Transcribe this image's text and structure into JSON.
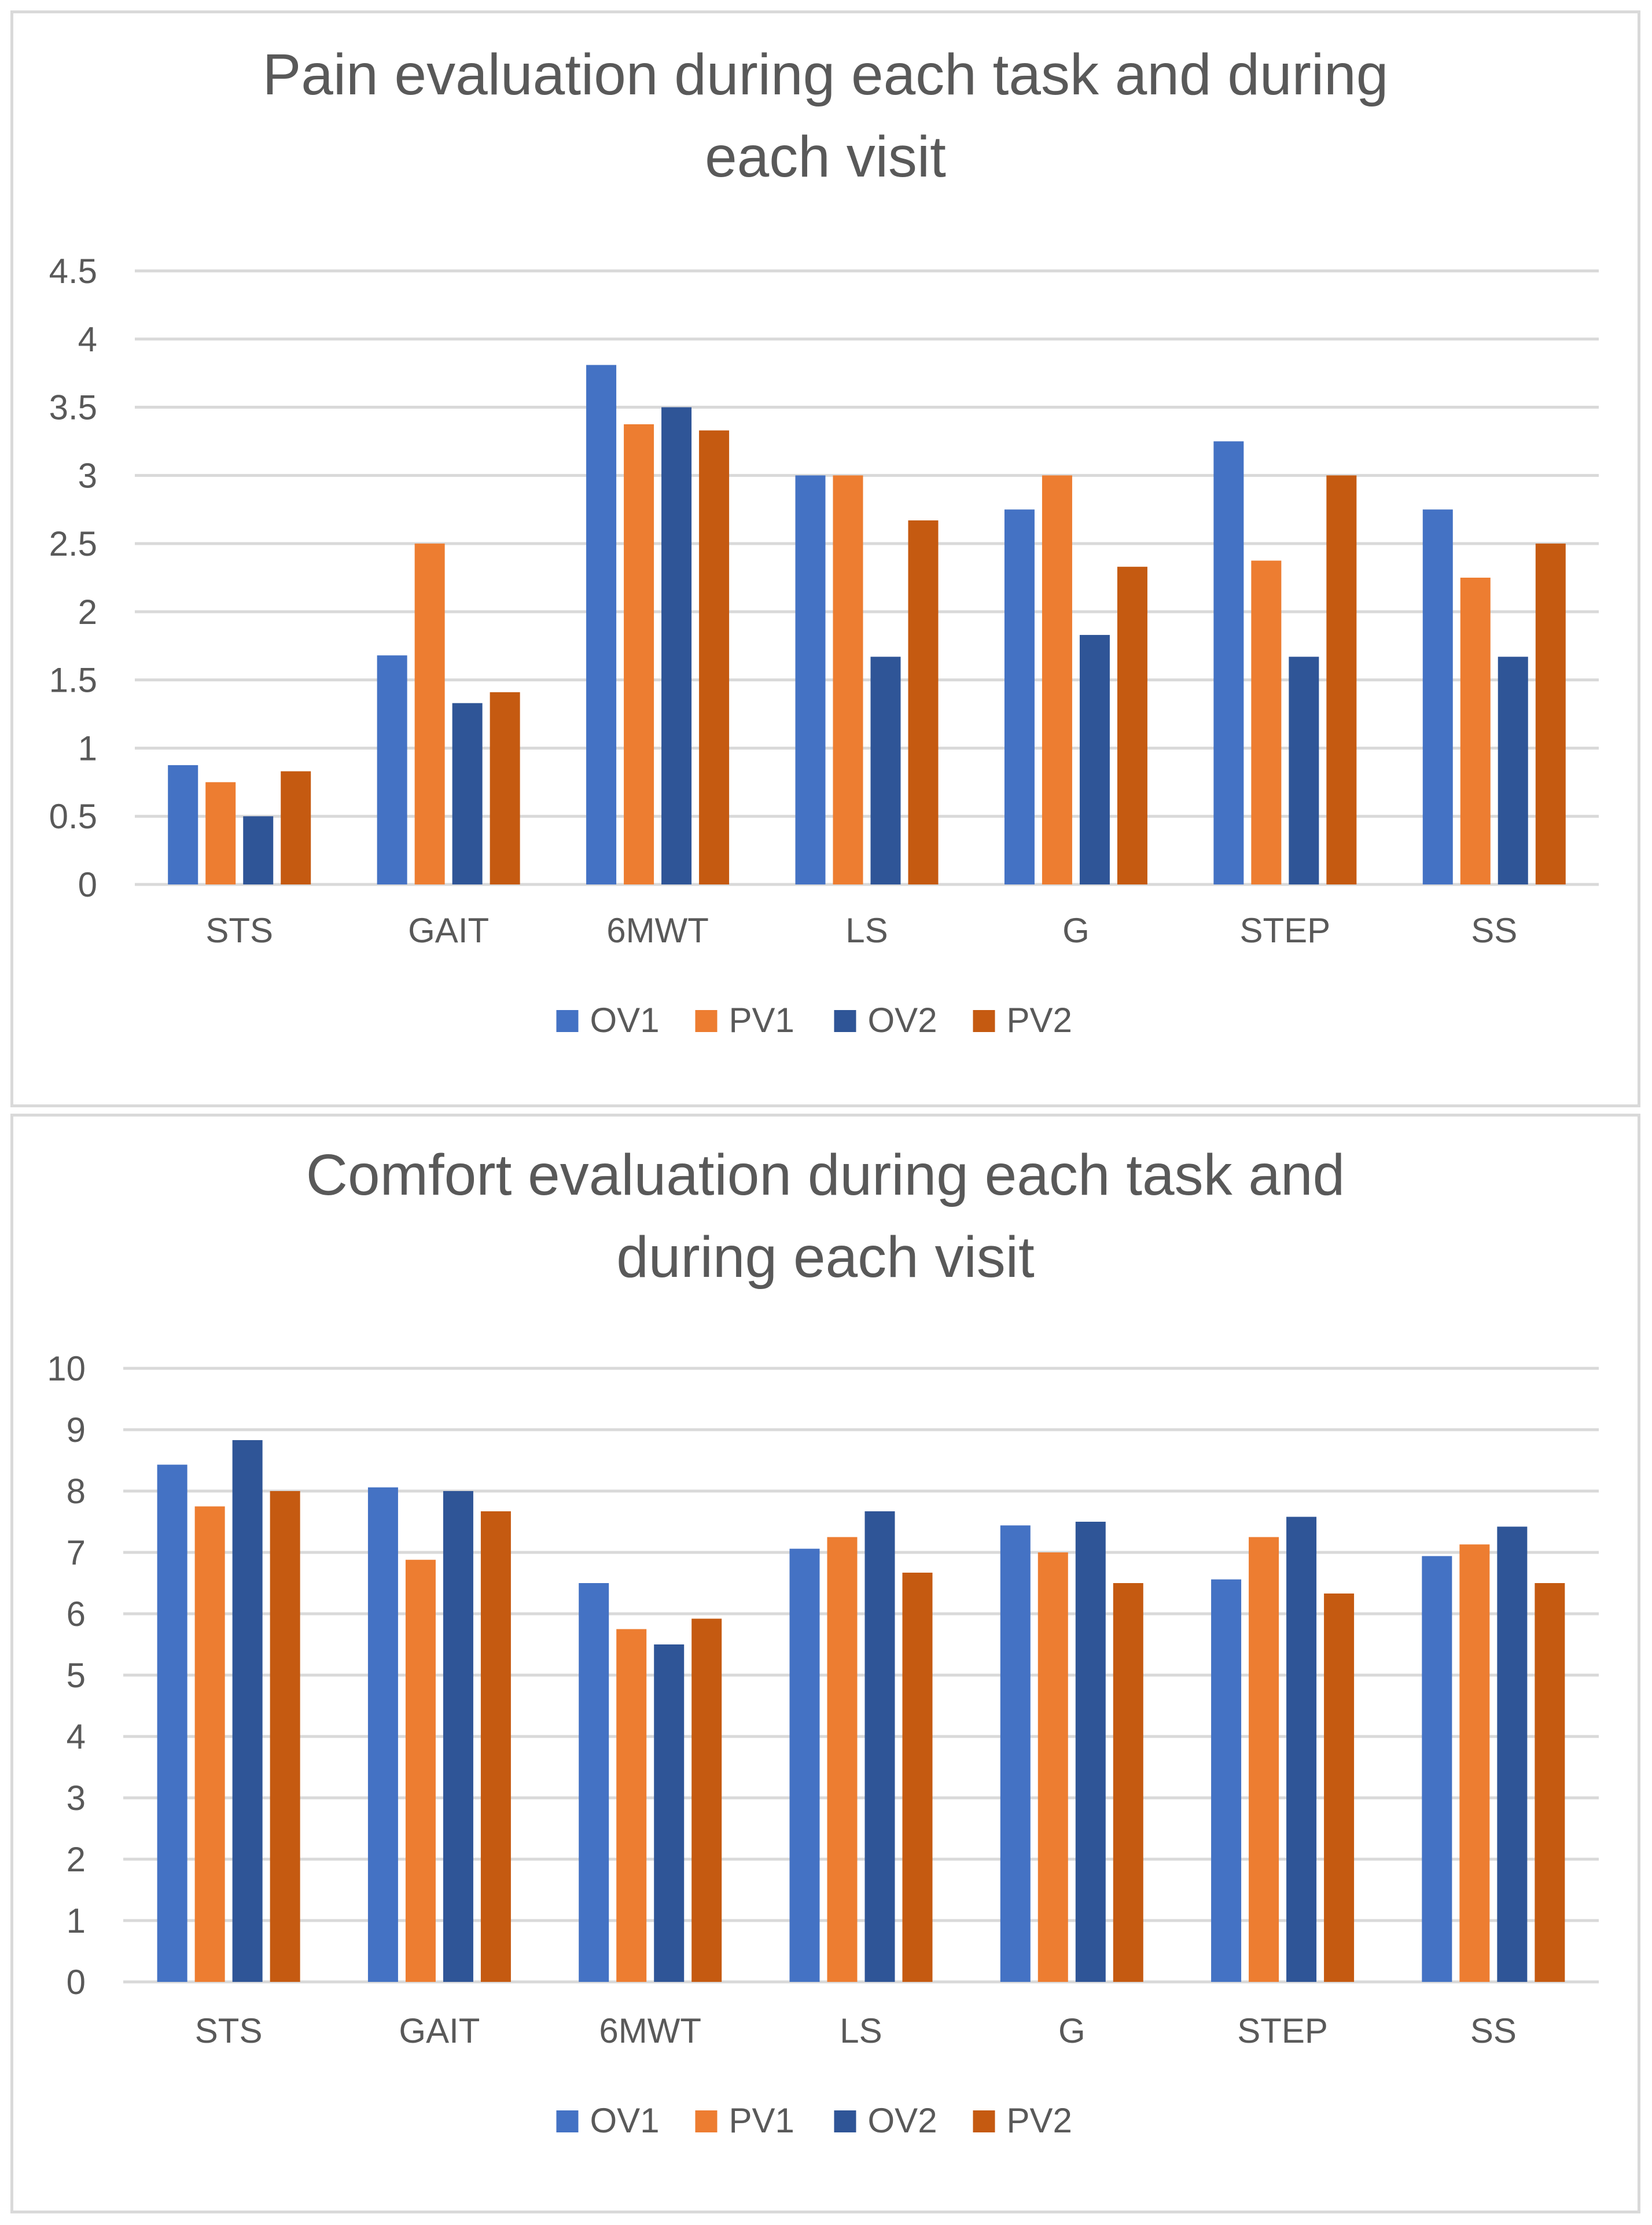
{
  "colors": {
    "OV1": "#4472c4",
    "PV1": "#ed7d31",
    "OV2": "#2f5597",
    "PV2": "#c55a11",
    "grid": "#d9d9d9",
    "text": "#595959"
  },
  "chart_data": [
    {
      "type": "bar",
      "title_lines": [
        "Pain evaluation during each task and during",
        "each visit"
      ],
      "categories": [
        "STS",
        "GAIT",
        "6MWT",
        "LS",
        "G",
        "STEP",
        "SS"
      ],
      "ylim": [
        0,
        4.5
      ],
      "yticks": [
        "0",
        "0.5",
        "1",
        "1.5",
        "2",
        "2.5",
        "3",
        "3.5",
        "4",
        "4.5"
      ],
      "grid": true,
      "legend_position": "bottom",
      "xlabel": "",
      "ylabel": "",
      "series": [
        {
          "name": "OV1",
          "values": [
            0.875,
            1.68,
            3.81,
            3.0,
            2.75,
            3.25,
            2.75
          ]
        },
        {
          "name": "PV1",
          "values": [
            0.75,
            2.5,
            3.375,
            3.0,
            3.0,
            2.375,
            2.25
          ]
        },
        {
          "name": "OV2",
          "values": [
            0.5,
            1.33,
            3.5,
            1.67,
            1.83,
            1.67,
            1.67
          ]
        },
        {
          "name": "PV2",
          "values": [
            0.83,
            1.41,
            3.33,
            2.67,
            2.33,
            3.0,
            2.5
          ]
        }
      ]
    },
    {
      "type": "bar",
      "title_lines": [
        "Comfort evaluation during each task and",
        "during each visit"
      ],
      "categories": [
        "STS",
        "GAIT",
        "6MWT",
        "LS",
        "G",
        "STEP",
        "SS"
      ],
      "ylim": [
        0,
        10
      ],
      "yticks": [
        "0",
        "1",
        "2",
        "3",
        "4",
        "5",
        "6",
        "7",
        "8",
        "9",
        "10"
      ],
      "grid": true,
      "legend_position": "bottom",
      "xlabel": "",
      "ylabel": "",
      "series": [
        {
          "name": "OV1",
          "values": [
            8.43,
            8.06,
            6.5,
            7.06,
            7.44,
            6.56,
            6.94
          ]
        },
        {
          "name": "PV1",
          "values": [
            7.75,
            6.88,
            5.75,
            7.25,
            7.0,
            7.25,
            7.13
          ]
        },
        {
          "name": "OV2",
          "values": [
            8.83,
            8.0,
            5.5,
            7.67,
            7.5,
            7.58,
            7.42
          ]
        },
        {
          "name": "PV2",
          "values": [
            8.0,
            7.67,
            5.92,
            6.67,
            6.5,
            6.33,
            6.5
          ]
        }
      ]
    }
  ]
}
